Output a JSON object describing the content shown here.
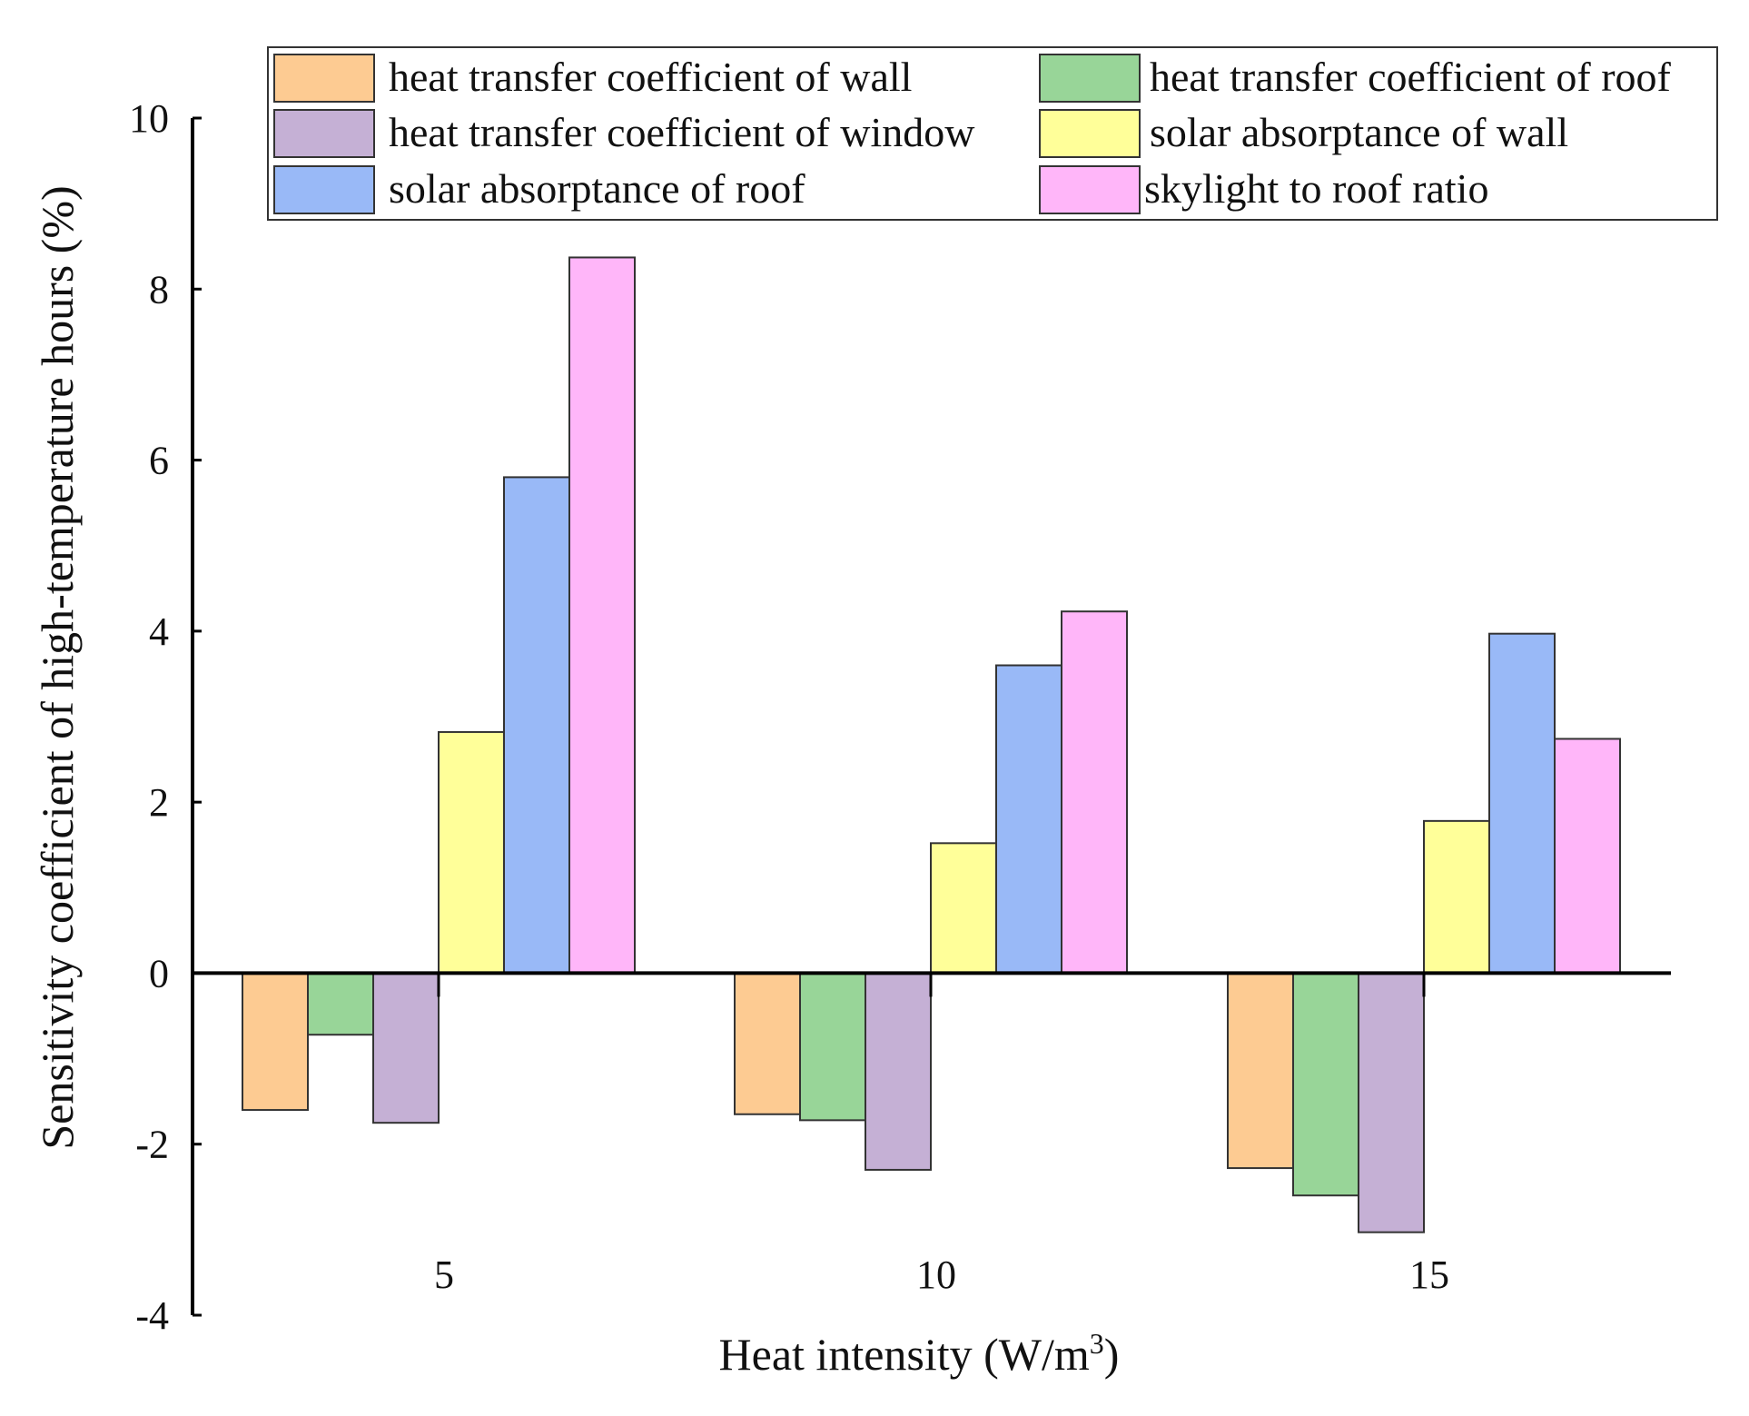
{
  "chart_data": {
    "type": "bar",
    "xlabel": "Heat intensity (W/m",
    "xlabel_sup": "3",
    "xlabel_end": ")",
    "ylabel": "Sensitivity coefficient of high-temperature hours (%)",
    "ylim": [
      -4,
      10
    ],
    "yticks": [
      "-4",
      "-2",
      "0",
      "2",
      "4",
      "6",
      "8",
      "10"
    ],
    "categories": [
      "5",
      "10",
      "15"
    ],
    "legend_position": "top",
    "series": [
      {
        "name": "heat transfer coefficient of wall",
        "color": "#FDCB92",
        "values": [
          -1.6,
          -1.65,
          -2.28
        ]
      },
      {
        "name": "heat transfer coefficient of roof",
        "color": "#98D598",
        "values": [
          -0.72,
          -1.72,
          -2.6
        ]
      },
      {
        "name": "heat transfer coefficient of window",
        "color": "#C5B0D5",
        "values": [
          -1.75,
          -2.3,
          -3.03
        ]
      },
      {
        "name": "solar absorptance of wall",
        "color": "#FFFF99",
        "values": [
          2.82,
          1.52,
          1.78
        ]
      },
      {
        "name": "solar absorptance of roof",
        "color": "#99B9F7",
        "values": [
          5.8,
          3.6,
          3.97
        ]
      },
      {
        "name": "skylight to roof ratio",
        "color": "#FFB6F9",
        "values": [
          8.37,
          4.23,
          2.74
        ]
      }
    ]
  }
}
